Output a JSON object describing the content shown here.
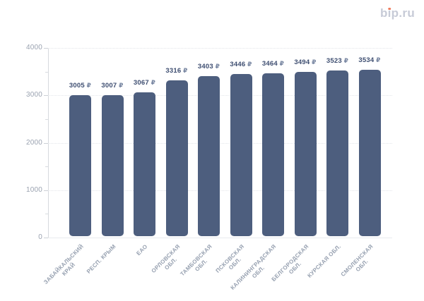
{
  "brand": {
    "text": "bip.ru"
  },
  "chart_data": {
    "type": "bar",
    "title": "",
    "xlabel": "",
    "ylabel": "",
    "legend": false,
    "grid": "horizontal-dotted",
    "currency": "₽",
    "categories": [
      [
        "ЗАБАЙКАЛЬСКИЙ",
        "КРАЙ"
      ],
      [
        "РЕСП. КРЫМ"
      ],
      [
        "ЕАО"
      ],
      [
        "ОРЛОВСКАЯ",
        "ОБЛ."
      ],
      [
        "ТАМБОВСКАЯ",
        "ОБЛ."
      ],
      [
        "ПСКОВСКАЯ",
        "ОБЛ."
      ],
      [
        "КАЛИНИНГРАДСКАЯ",
        "ОБЛ."
      ],
      [
        "БЕЛГОРОДСКАЯ",
        "ОБЛ."
      ],
      [
        "КУРСКАЯ ОБЛ."
      ],
      [
        "СМОЛЕНСКАЯ",
        "ОБЛ."
      ]
    ],
    "values": [
      3005,
      3007,
      3067,
      3316,
      3403,
      3446,
      3464,
      3494,
      3523,
      3534
    ],
    "value_labels": [
      "3005 ₽",
      "3007 ₽",
      "3067 ₽",
      "3316 ₽",
      "3403 ₽",
      "3446 ₽",
      "3464 ₽",
      "3494 ₽",
      "3523 ₽",
      "3534 ₽"
    ],
    "ylim": [
      0,
      4000
    ],
    "yticks": [
      0,
      1000,
      2000,
      3000,
      4000
    ],
    "yticks_minor": [
      500,
      1500,
      2500,
      3500
    ]
  },
  "colors": {
    "bar": "#4d5e7e",
    "value_label": "#3d4d70",
    "ruble": "#7a88a3",
    "axis_label": "#9aa2b0",
    "category_label": "#96a0b0",
    "gridline": "#e3e5e9",
    "axis_line": "#d7dade",
    "brand_text": "#c7cbd7",
    "brand_dot": "#ee7b5d"
  }
}
